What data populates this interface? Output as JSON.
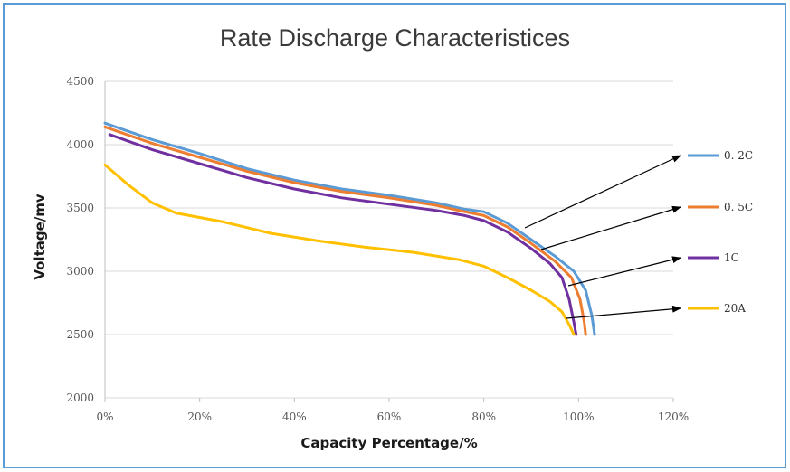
{
  "chart_data": {
    "type": "line",
    "title": "Rate Discharge Characteristices",
    "xlabel": "Capacity Percentage/%",
    "ylabel": "Voltage/mv",
    "xlim": [
      0,
      120
    ],
    "ylim": [
      2000,
      4500
    ],
    "x_ticks": [
      0,
      20,
      40,
      60,
      80,
      100,
      120
    ],
    "x_tick_labels": [
      "0%",
      "20%",
      "40%",
      "60%",
      "80%",
      "100%",
      "120%"
    ],
    "y_ticks": [
      2000,
      2500,
      3000,
      3500,
      4000,
      4500
    ],
    "y_tick_labels": [
      "2000",
      "2500",
      "3000",
      "3500",
      "4000",
      "4500"
    ],
    "grid": "horizontal",
    "legend": "right, with arrows pointing to curves",
    "series": [
      {
        "name": "0. 2C",
        "color": "#5b9bd5",
        "points": [
          [
            0,
            4170
          ],
          [
            10,
            4040
          ],
          [
            20,
            3930
          ],
          [
            30,
            3810
          ],
          [
            40,
            3720
          ],
          [
            50,
            3650
          ],
          [
            60,
            3600
          ],
          [
            70,
            3540
          ],
          [
            76,
            3490
          ],
          [
            80,
            3470
          ],
          [
            85,
            3380
          ],
          [
            90,
            3250
          ],
          [
            95,
            3120
          ],
          [
            99,
            3000
          ],
          [
            101.5,
            2850
          ],
          [
            102.8,
            2650
          ],
          [
            103.4,
            2500
          ]
        ]
      },
      {
        "name": "0. 5C",
        "color": "#ed7d31",
        "points": [
          [
            0,
            4140
          ],
          [
            10,
            4010
          ],
          [
            20,
            3900
          ],
          [
            30,
            3790
          ],
          [
            40,
            3700
          ],
          [
            50,
            3630
          ],
          [
            60,
            3580
          ],
          [
            70,
            3520
          ],
          [
            76,
            3470
          ],
          [
            80,
            3440
          ],
          [
            85,
            3350
          ],
          [
            90,
            3220
          ],
          [
            95,
            3080
          ],
          [
            98.5,
            2950
          ],
          [
            100.3,
            2780
          ],
          [
            101.2,
            2600
          ],
          [
            101.5,
            2500
          ]
        ]
      },
      {
        "name": "1C",
        "color": "#7030a0",
        "points": [
          [
            1,
            4080
          ],
          [
            10,
            3960
          ],
          [
            20,
            3850
          ],
          [
            30,
            3740
          ],
          [
            40,
            3650
          ],
          [
            50,
            3580
          ],
          [
            60,
            3530
          ],
          [
            70,
            3480
          ],
          [
            76,
            3440
          ],
          [
            80,
            3400
          ],
          [
            85,
            3310
          ],
          [
            90,
            3180
          ],
          [
            94,
            3060
          ],
          [
            96.5,
            2950
          ],
          [
            98,
            2780
          ],
          [
            99,
            2600
          ],
          [
            99.5,
            2500
          ]
        ]
      },
      {
        "name": "20A",
        "color": "#ffc000",
        "points": [
          [
            0,
            3840
          ],
          [
            5,
            3680
          ],
          [
            10,
            3540
          ],
          [
            15,
            3460
          ],
          [
            25,
            3390
          ],
          [
            35,
            3300
          ],
          [
            45,
            3240
          ],
          [
            55,
            3190
          ],
          [
            65,
            3150
          ],
          [
            75,
            3090
          ],
          [
            80,
            3040
          ],
          [
            85,
            2950
          ],
          [
            90,
            2850
          ],
          [
            94,
            2760
          ],
          [
            96.5,
            2680
          ],
          [
            98,
            2580
          ],
          [
            99,
            2500
          ]
        ]
      }
    ]
  }
}
